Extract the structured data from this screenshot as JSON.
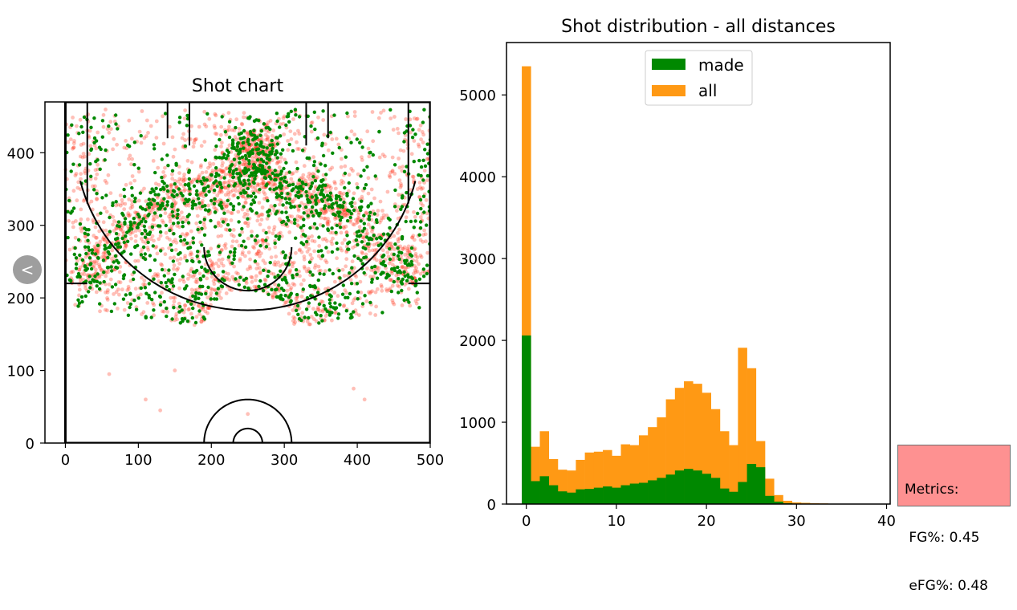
{
  "colors": {
    "made": "#008800",
    "all": "#ff9914",
    "missed": "#ff2a10",
    "metrics_bg": "#fe9191",
    "nav_button": "#9e9e9e"
  },
  "nav": {
    "back_icon": "chevron-left-icon",
    "back_glyph": "<"
  },
  "metrics": {
    "title": "Metrics:",
    "fg": " FG%: 0.45",
    "efg": " eFG%: 0.48"
  },
  "chart_data": [
    {
      "type": "scatter",
      "title": "Shot chart",
      "xlabel": "",
      "ylabel": "",
      "xlim": [
        -28,
        500
      ],
      "ylim": [
        0,
        470
      ],
      "xticks": [
        0,
        100,
        200,
        300,
        400,
        500
      ],
      "yticks": [
        0,
        100,
        200,
        300,
        400
      ],
      "series": [
        {
          "name": "",
          "color": "#ff2a10",
          "alpha": 0.3,
          "points": []
        },
        {
          "name": "",
          "color": "#008800",
          "alpha": 1.0,
          "points": []
        }
      ],
      "court_lines": "basketball half-court (baseline, sidelines, three-point line, key, free-throw circle, restricted area, hoop)"
    },
    {
      "type": "bar",
      "title": "Shot distribution - all distances",
      "xlabel": "",
      "ylabel": "",
      "xlim": [
        -2.2,
        40.4
      ],
      "ylim": [
        0,
        5640
      ],
      "xticks": [
        0,
        10,
        20,
        30,
        40
      ],
      "yticks": [
        0,
        1000,
        2000,
        3000,
        4000,
        5000
      ],
      "bin_width": 1,
      "bin_starts": [
        -0.5,
        0.5,
        1.5,
        2.5,
        3.5,
        4.5,
        5.5,
        6.5,
        7.5,
        8.5,
        9.5,
        10.5,
        11.5,
        12.5,
        13.5,
        14.5,
        15.5,
        16.5,
        17.5,
        18.5,
        19.5,
        20.5,
        21.5,
        22.5,
        23.5,
        24.5,
        25.5,
        26.5,
        27.5,
        28.5,
        29.5,
        30.5,
        31.5,
        32.5,
        33.5,
        34.5,
        35.5,
        36.5,
        37.5,
        38.5
      ],
      "legend_position": "upper center",
      "series": [
        {
          "name": "all",
          "color": "#ff9914",
          "values": [
            5350,
            700,
            890,
            550,
            420,
            410,
            540,
            630,
            640,
            660,
            590,
            730,
            720,
            840,
            940,
            1060,
            1280,
            1420,
            1500,
            1470,
            1360,
            1160,
            890,
            720,
            1910,
            1660,
            770,
            310,
            110,
            40,
            20,
            15,
            10,
            8,
            5,
            3,
            3,
            3,
            3,
            3
          ]
        },
        {
          "name": "made",
          "color": "#008800",
          "values": [
            2060,
            280,
            340,
            230,
            155,
            140,
            180,
            185,
            200,
            215,
            200,
            230,
            250,
            260,
            290,
            320,
            360,
            410,
            430,
            410,
            370,
            320,
            190,
            150,
            270,
            490,
            450,
            100,
            30,
            10,
            5,
            4,
            3,
            2,
            1,
            1,
            1,
            1,
            1,
            1
          ]
        }
      ]
    }
  ]
}
